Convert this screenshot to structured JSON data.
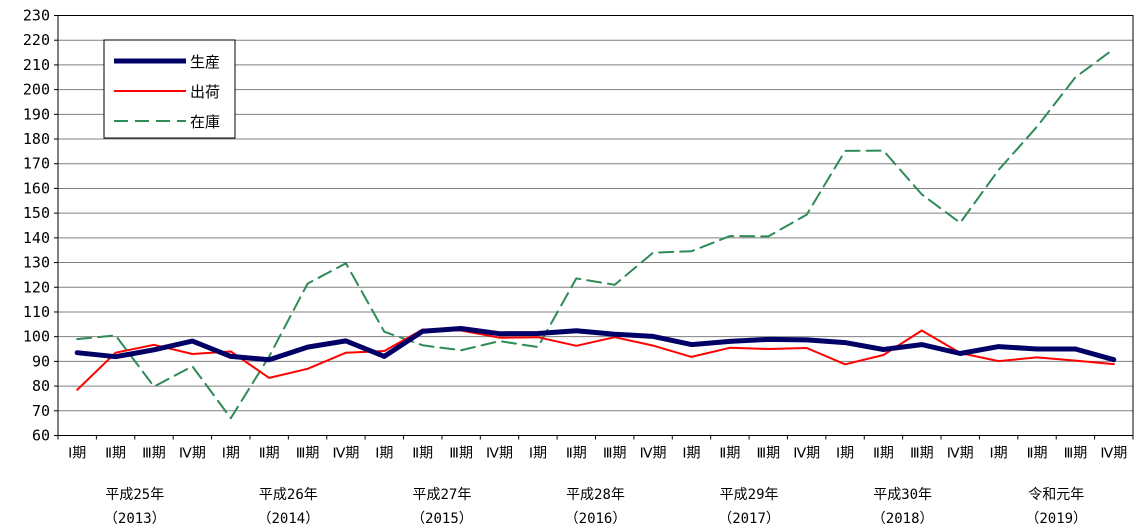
{
  "chart_data": {
    "type": "line",
    "categories": [
      "Ⅰ期",
      "Ⅱ期",
      "Ⅲ期",
      "Ⅳ期",
      "Ⅰ期",
      "Ⅱ期",
      "Ⅲ期",
      "Ⅳ期",
      "Ⅰ期",
      "Ⅱ期",
      "Ⅲ期",
      "Ⅳ期",
      "Ⅰ期",
      "Ⅱ期",
      "Ⅲ期",
      "Ⅳ期",
      "Ⅰ期",
      "Ⅱ期",
      "Ⅲ期",
      "Ⅳ期",
      "Ⅰ期",
      "Ⅱ期",
      "Ⅲ期",
      "Ⅳ期",
      "Ⅰ期",
      "Ⅱ期",
      "Ⅲ期",
      "Ⅳ期"
    ],
    "quarter_labels": [
      "Ⅰ",
      "Ⅱ",
      "Ⅲ",
      "Ⅳ"
    ],
    "quarter_suffix": "期",
    "groups": [
      {
        "label": "平成25年",
        "sub": "（2013）"
      },
      {
        "label": "平成26年",
        "sub": "（2014）"
      },
      {
        "label": "平成27年",
        "sub": "（2015）"
      },
      {
        "label": "平成28年",
        "sub": "（2016）"
      },
      {
        "label": "平成29年",
        "sub": "（2017）"
      },
      {
        "label": "平成30年",
        "sub": "（2018）"
      },
      {
        "label": "令和元年",
        "sub": "（2019）"
      }
    ],
    "ylim": [
      60,
      230
    ],
    "yticks": [
      60,
      70,
      80,
      90,
      100,
      110,
      120,
      130,
      140,
      150,
      160,
      170,
      180,
      190,
      200,
      210,
      220,
      230
    ],
    "grid": true,
    "legend_position": "top-left",
    "series": [
      {
        "name": "生産",
        "color": "#000066",
        "style": "solid-thick",
        "values": [
          93.5,
          91.9,
          94.7,
          98.2,
          92,
          90.7,
          95.8,
          98.3,
          92,
          102.2,
          103.3,
          101.2,
          101.3,
          102.4,
          101,
          100.1,
          96.8,
          98.1,
          98.9,
          98.7,
          97.6,
          94.8,
          96.8,
          93.2,
          96,
          95,
          95,
          90.7
        ]
      },
      {
        "name": "出荷",
        "color": "#ff0000",
        "style": "solid",
        "values": [
          78.5,
          93.5,
          96.7,
          93,
          94,
          83.3,
          87,
          93.5,
          94.2,
          102.9,
          102.5,
          99.6,
          99.8,
          96.3,
          99.8,
          96.4,
          91.8,
          95.5,
          95,
          95.4,
          88.8,
          92.6,
          102.5,
          93.4,
          90.1,
          91.6,
          90.3,
          88.9
        ]
      },
      {
        "name": "在庫",
        "color": "#2e8b57",
        "style": "dashed",
        "values": [
          99,
          100.5,
          79.8,
          88,
          67,
          92,
          121.5,
          129.7,
          102,
          96.5,
          94.5,
          98.2,
          95.8,
          123.6,
          121,
          134,
          134.6,
          140.7,
          140.6,
          149.4,
          175.2,
          175.3,
          157.6,
          146.1,
          167.5,
          185,
          205,
          216.5
        ]
      }
    ]
  }
}
